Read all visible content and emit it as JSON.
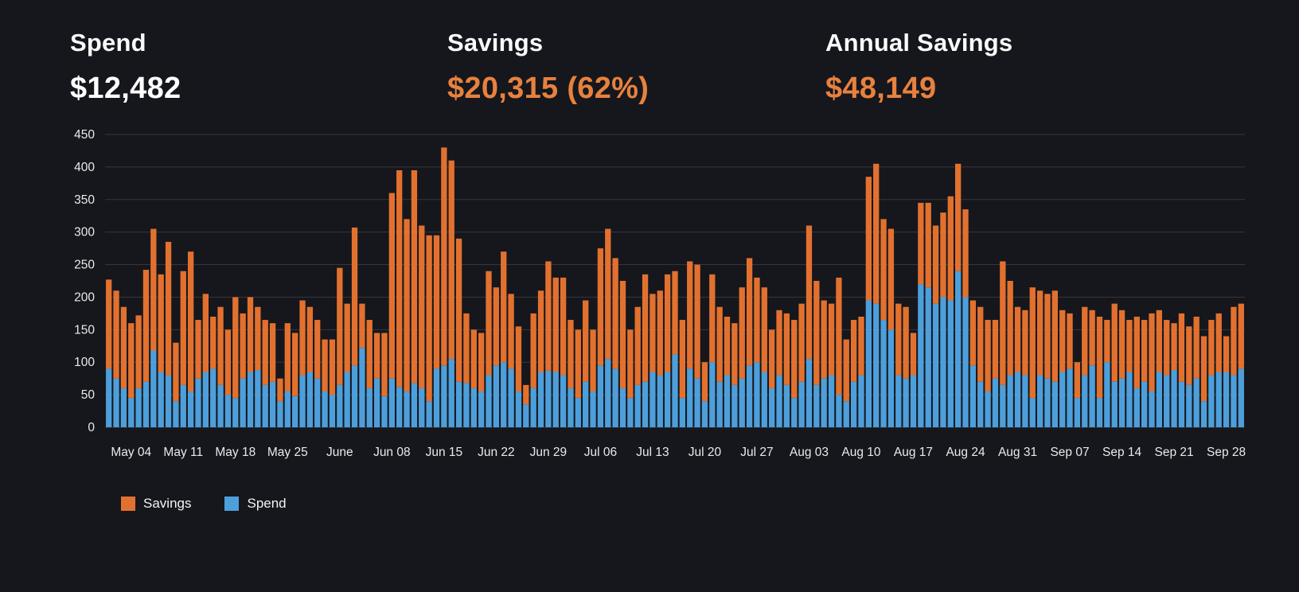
{
  "stats": [
    {
      "label": "Spend",
      "value": "$12,482",
      "value_color": "#ffffff"
    },
    {
      "label": "Savings",
      "value": "$20,315 (62%)",
      "value_color": "#e8813f"
    },
    {
      "label": "Annual Savings",
      "value": "$48,149",
      "value_color": "#e8813f"
    }
  ],
  "legend": [
    {
      "label": "Savings",
      "color": "#e2712f"
    },
    {
      "label": "Spend",
      "color": "#4d9fdb"
    }
  ],
  "colors": {
    "background": "#15171c",
    "accent_orange": "#e2712f",
    "accent_blue": "#4d9fdb",
    "gridline": "rgba(255,255,255,0.14)",
    "axis_text": "#e8eaed"
  },
  "chart_data": {
    "type": "bar",
    "stacked": true,
    "title": "",
    "xlabel": "",
    "ylabel": "",
    "x_unit": "day",
    "x_start": "May 01",
    "x_end": "Sep 30",
    "ylim": [
      0,
      450
    ],
    "ytick_step": 50,
    "grid": true,
    "legend_position": "bottom",
    "ticks": [
      {
        "label": "May 04",
        "index": 3
      },
      {
        "label": "May 11",
        "index": 10
      },
      {
        "label": "May 18",
        "index": 17
      },
      {
        "label": "May 25",
        "index": 24
      },
      {
        "label": "June",
        "index": 31
      },
      {
        "label": "Jun 08",
        "index": 38
      },
      {
        "label": "Jun 15",
        "index": 45
      },
      {
        "label": "Jun 22",
        "index": 52
      },
      {
        "label": "Jun 29",
        "index": 59
      },
      {
        "label": "Jul 06",
        "index": 66
      },
      {
        "label": "Jul 13",
        "index": 73
      },
      {
        "label": "Jul 20",
        "index": 80
      },
      {
        "label": "Jul 27",
        "index": 87
      },
      {
        "label": "Aug 03",
        "index": 94
      },
      {
        "label": "Aug 10",
        "index": 101
      },
      {
        "label": "Aug 17",
        "index": 108
      },
      {
        "label": "Aug 24",
        "index": 115
      },
      {
        "label": "Aug 31",
        "index": 122
      },
      {
        "label": "Sep 07",
        "index": 129
      },
      {
        "label": "Sep 14",
        "index": 136
      },
      {
        "label": "Sep 21",
        "index": 143
      },
      {
        "label": "Sep 28",
        "index": 150
      }
    ],
    "series": [
      {
        "name": "Spend",
        "color": "#4d9fdb",
        "values": [
          90,
          75,
          60,
          45,
          60,
          70,
          118,
          85,
          80,
          40,
          65,
          55,
          75,
          85,
          90,
          65,
          50,
          45,
          75,
          85,
          88,
          65,
          70,
          40,
          55,
          48,
          80,
          85,
          75,
          55,
          50,
          65,
          85,
          95,
          122,
          60,
          75,
          48,
          75,
          62,
          55,
          68,
          60,
          40,
          90,
          95,
          105,
          70,
          68,
          60,
          55,
          80,
          95,
          100,
          90,
          55,
          35,
          60,
          85,
          87,
          85,
          80,
          60,
          45,
          70,
          55,
          95,
          105,
          90,
          60,
          45,
          65,
          70,
          85,
          80,
          85,
          112,
          45,
          90,
          75,
          40,
          100,
          70,
          80,
          65,
          75,
          95,
          100,
          85,
          60,
          80,
          65,
          45,
          70,
          105,
          65,
          75,
          80,
          50,
          40,
          70,
          80,
          195,
          190,
          165,
          150,
          80,
          75,
          80,
          220,
          215,
          190,
          200,
          195,
          240,
          200,
          95,
          70,
          55,
          75,
          65,
          80,
          85,
          80,
          45,
          80,
          75,
          70,
          85,
          90,
          45,
          80,
          95,
          45,
          100,
          70,
          75,
          85,
          60,
          70,
          55,
          85,
          80,
          88,
          70,
          65,
          75,
          40,
          80,
          85,
          85,
          80,
          90
        ]
      },
      {
        "name": "Savings",
        "color": "#e2712f",
        "values": [
          137,
          135,
          125,
          115,
          112,
          172,
          187,
          150,
          205,
          90,
          175,
          215,
          90,
          120,
          80,
          120,
          100,
          155,
          100,
          115,
          97,
          100,
          90,
          35,
          105,
          97,
          115,
          100,
          90,
          80,
          85,
          180,
          105,
          212,
          68,
          105,
          70,
          97,
          285,
          333,
          265,
          327,
          250,
          255,
          205,
          335,
          305,
          220,
          107,
          90,
          90,
          160,
          120,
          170,
          115,
          100,
          30,
          115,
          125,
          168,
          145,
          150,
          105,
          105,
          125,
          95,
          180,
          200,
          170,
          165,
          105,
          120,
          165,
          120,
          130,
          150,
          128,
          120,
          165,
          175,
          60,
          135,
          115,
          90,
          95,
          140,
          165,
          130,
          130,
          90,
          100,
          110,
          120,
          120,
          205,
          160,
          120,
          110,
          180,
          95,
          95,
          90,
          190,
          215,
          155,
          155,
          110,
          110,
          65,
          125,
          130,
          120,
          130,
          160,
          165,
          135,
          100,
          115,
          110,
          90,
          190,
          145,
          100,
          100,
          170,
          130,
          130,
          140,
          95,
          85,
          55,
          105,
          85,
          125,
          65,
          120,
          105,
          80,
          110,
          95,
          120,
          95,
          85,
          72,
          105,
          90,
          95,
          100,
          85,
          90,
          55,
          105,
          100
        ]
      }
    ]
  }
}
